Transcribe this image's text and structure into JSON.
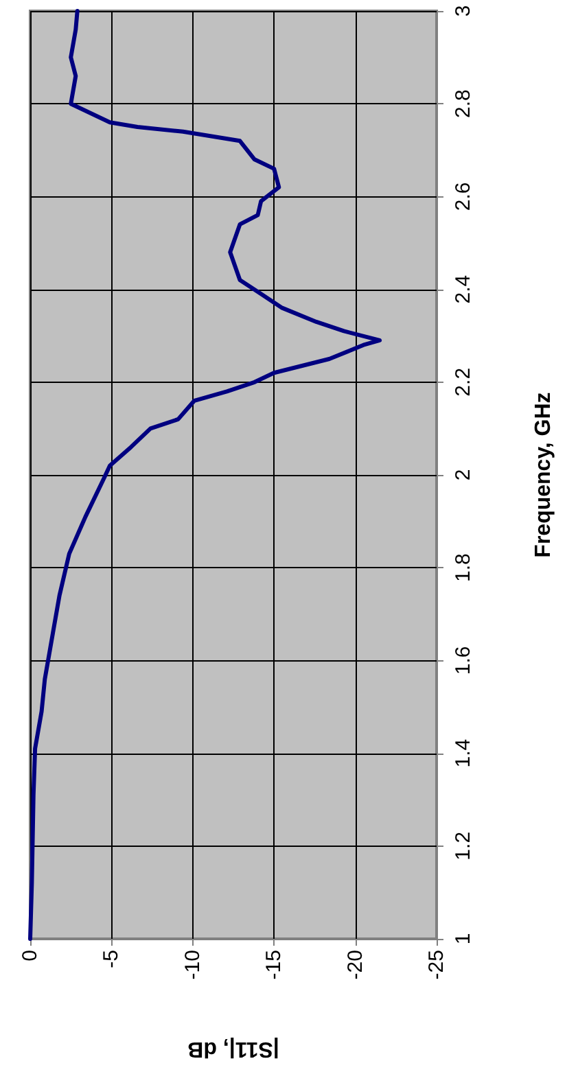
{
  "chart_data": {
    "type": "line",
    "xlabel": "|S11|, dB",
    "ylabel": "Frequency, GHz",
    "series": [
      {
        "color": "#000080",
        "x": [
          0,
          -0.1,
          -0.2,
          -0.3,
          -0.7,
          -0.9,
          -1.4,
          -1.8,
          -2.4,
          -3.4,
          -4.5,
          -4.9,
          -6.2,
          -7.4,
          -9.1,
          -10.1,
          -12.1,
          -13.8,
          -15.0,
          -18.4,
          -20.5,
          -21.5,
          -19.3,
          -17.6,
          -15.5,
          -14.2,
          -12.9,
          -12.3,
          -12.9,
          -14.0,
          -14.2,
          -15.3,
          -15.0,
          -13.8,
          -12.9,
          -9.4,
          -6.6,
          -4.9,
          -2.5,
          -2.8,
          -2.5,
          -2.8,
          -2.9
        ],
        "values": [
          1.0,
          1.12,
          1.31,
          1.41,
          1.49,
          1.56,
          1.66,
          1.74,
          1.83,
          1.91,
          1.99,
          2.02,
          2.06,
          2.1,
          2.12,
          2.16,
          2.18,
          2.2,
          2.22,
          2.25,
          2.28,
          2.29,
          2.31,
          2.33,
          2.36,
          2.39,
          2.42,
          2.48,
          2.54,
          2.56,
          2.59,
          2.62,
          2.66,
          2.68,
          2.72,
          2.74,
          2.75,
          2.76,
          2.8,
          2.86,
          2.9,
          2.96,
          3.0
        ]
      }
    ],
    "xlim": [
      0,
      -25
    ],
    "xticks": [
      0,
      -5,
      -10,
      -15,
      -20,
      -25
    ],
    "ylim": [
      1,
      3
    ],
    "yticks": [
      1,
      1.2,
      1.4,
      1.6,
      1.8,
      2,
      2.2,
      2.4,
      2.6,
      2.8,
      3
    ],
    "grid": true,
    "marker": "none",
    "line_style": "solid"
  }
}
